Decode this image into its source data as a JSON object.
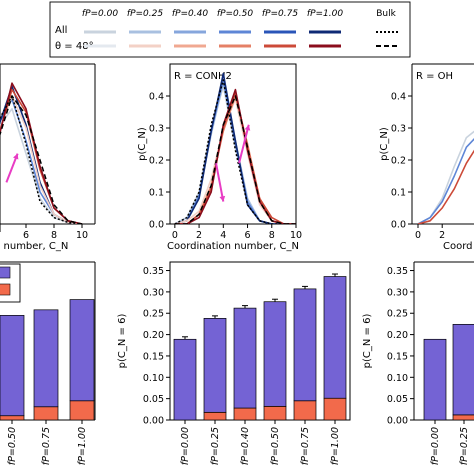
{
  "legend": {
    "row_labels": [
      "All",
      "θ = 48°"
    ],
    "entries": [
      {
        "label": "f_P = 0.00",
        "all_color": "#c9d3de",
        "theta_color": "#e4e9ef"
      },
      {
        "label": "f_P = 0.25",
        "all_color": "#a9c0e0",
        "theta_color": "#f3d1c6"
      },
      {
        "label": "f_P = 0.40",
        "all_color": "#86a6dc",
        "theta_color": "#f0a891"
      },
      {
        "label": "f_P = 0.50",
        "all_color": "#5e86d6",
        "theta_color": "#e58066"
      },
      {
        "label": "f_P = 0.75",
        "all_color": "#2a55b8",
        "theta_color": "#cc4a38"
      },
      {
        "label": "f_P = 1.00",
        "all_color": "#0f2a75",
        "theta_color": "#8b0d1c"
      }
    ],
    "bulk_label": "Bulk"
  },
  "colors": {
    "purple": "#7463d4",
    "orange": "#f26a4b",
    "arrow": "#e83cc4"
  },
  "chart_data": [
    {
      "type": "line",
      "panel": "top-left",
      "title": "",
      "xlabel": "Coordination number, C_N",
      "xlabel_visible": "n number, C_N",
      "ylabel": "",
      "xlim": [
        0,
        10
      ],
      "ylim": [
        0,
        0.5
      ],
      "xticks": [
        6,
        8,
        10
      ],
      "series": [
        {
          "group": "all",
          "fp": "0.00",
          "x": [
            0,
            1,
            2,
            3,
            4,
            5,
            6,
            7,
            8,
            9,
            10
          ],
          "y": [
            0,
            0.02,
            0.08,
            0.19,
            0.3,
            0.36,
            0.22,
            0.08,
            0.02,
            0.005,
            0
          ]
        },
        {
          "group": "all",
          "fp": "0.50",
          "x": [
            0,
            1,
            2,
            3,
            4,
            5,
            6,
            7,
            8,
            9,
            10
          ],
          "y": [
            0,
            0.02,
            0.07,
            0.18,
            0.31,
            0.39,
            0.26,
            0.1,
            0.03,
            0.005,
            0
          ]
        },
        {
          "group": "all",
          "fp": "1.00",
          "x": [
            0,
            1,
            2,
            3,
            4,
            5,
            6,
            7,
            8,
            9,
            10
          ],
          "y": [
            0,
            0.01,
            0.06,
            0.16,
            0.3,
            0.43,
            0.31,
            0.13,
            0.03,
            0.005,
            0
          ]
        },
        {
          "group": "theta",
          "fp": "0.25",
          "x": [
            0,
            1,
            2,
            3,
            4,
            5,
            6,
            7,
            8,
            9,
            10
          ],
          "y": [
            0,
            0.01,
            0.05,
            0.14,
            0.28,
            0.4,
            0.3,
            0.12,
            0.03,
            0.005,
            0
          ]
        },
        {
          "group": "theta",
          "fp": "0.75",
          "x": [
            0,
            1,
            2,
            3,
            4,
            5,
            6,
            7,
            8,
            9,
            10
          ],
          "y": [
            0,
            0.01,
            0.04,
            0.12,
            0.27,
            0.42,
            0.35,
            0.17,
            0.05,
            0.01,
            0
          ]
        },
        {
          "group": "theta",
          "fp": "1.00",
          "x": [
            0,
            1,
            2,
            3,
            4,
            5,
            6,
            7,
            8,
            9,
            10
          ],
          "y": [
            0,
            0.01,
            0.04,
            0.11,
            0.26,
            0.44,
            0.36,
            0.18,
            0.05,
            0.01,
            0
          ]
        },
        {
          "group": "bulk-all",
          "fp": "bulk",
          "x": [
            0,
            1,
            2,
            3,
            4,
            5,
            6,
            7,
            8,
            9,
            10
          ],
          "y": [
            0,
            0.01,
            0.05,
            0.17,
            0.32,
            0.4,
            0.25,
            0.07,
            0.02,
            0.005,
            0
          ]
        },
        {
          "group": "bulk-theta",
          "fp": "bulk",
          "x": [
            0,
            1,
            2,
            3,
            4,
            5,
            6,
            7,
            8,
            9,
            10
          ],
          "y": [
            0,
            0.01,
            0.04,
            0.12,
            0.26,
            0.4,
            0.34,
            0.2,
            0.06,
            0.01,
            0
          ]
        }
      ],
      "arrows": [
        {
          "from": [
            4.6,
            0.13
          ],
          "to": [
            5.4,
            0.22
          ]
        }
      ]
    },
    {
      "type": "line",
      "panel": "top-middle",
      "title": "R = CONH2",
      "xlabel": "Coordination number, C_N",
      "ylabel": "p(C_N)",
      "xlim": [
        -0.4,
        10
      ],
      "ylim": [
        0,
        0.5
      ],
      "xticks": [
        0,
        2,
        4,
        6,
        8,
        10
      ],
      "yticks": [
        0.0,
        0.1,
        0.2,
        0.3,
        0.4
      ],
      "series": [
        {
          "group": "all",
          "fp": "0.00",
          "x": [
            0,
            1,
            2,
            3,
            4,
            5,
            6,
            7,
            8,
            9,
            10
          ],
          "y": [
            0,
            0.02,
            0.1,
            0.3,
            0.43,
            0.24,
            0.07,
            0.01,
            0,
            0,
            0
          ]
        },
        {
          "group": "all",
          "fp": "0.25",
          "x": [
            0,
            1,
            2,
            3,
            4,
            5,
            6,
            7,
            8,
            9,
            10
          ],
          "y": [
            0,
            0.02,
            0.09,
            0.28,
            0.44,
            0.26,
            0.08,
            0.01,
            0,
            0,
            0
          ]
        },
        {
          "group": "all",
          "fp": "0.50",
          "x": [
            0,
            1,
            2,
            3,
            4,
            5,
            6,
            7,
            8,
            9,
            10
          ],
          "y": [
            0,
            0.01,
            0.09,
            0.29,
            0.45,
            0.25,
            0.07,
            0.01,
            0,
            0,
            0
          ]
        },
        {
          "group": "all",
          "fp": "1.00",
          "x": [
            0,
            1,
            2,
            3,
            4,
            5,
            6,
            7,
            8,
            9,
            10
          ],
          "y": [
            0,
            0.01,
            0.08,
            0.29,
            0.47,
            0.26,
            0.06,
            0.01,
            0,
            0,
            0
          ]
        },
        {
          "group": "theta",
          "fp": "0.25",
          "x": [
            0,
            1,
            2,
            3,
            4,
            5,
            6,
            7,
            8,
            9,
            10
          ],
          "y": [
            0,
            0.01,
            0.04,
            0.14,
            0.3,
            0.39,
            0.22,
            0.06,
            0.01,
            0,
            0
          ]
        },
        {
          "group": "theta",
          "fp": "0.50",
          "x": [
            0,
            1,
            2,
            3,
            4,
            5,
            6,
            7,
            8,
            9,
            10
          ],
          "y": [
            0,
            0,
            0.03,
            0.12,
            0.29,
            0.4,
            0.25,
            0.08,
            0.01,
            0,
            0
          ]
        },
        {
          "group": "theta",
          "fp": "0.75",
          "x": [
            0,
            1,
            2,
            3,
            4,
            5,
            6,
            7,
            8,
            9,
            10
          ],
          "y": [
            0,
            0,
            0.03,
            0.11,
            0.3,
            0.41,
            0.24,
            0.08,
            0.02,
            0,
            0
          ]
        },
        {
          "group": "theta",
          "fp": "1.00",
          "x": [
            0,
            1,
            2,
            3,
            4,
            5,
            6,
            7,
            8,
            9,
            10
          ],
          "y": [
            0,
            0,
            0.02,
            0.1,
            0.31,
            0.42,
            0.23,
            0.07,
            0.01,
            0,
            0
          ]
        },
        {
          "group": "bulk-all",
          "fp": "bulk",
          "x": [
            0,
            1,
            2,
            3,
            4,
            5,
            6,
            7,
            8,
            9,
            10
          ],
          "y": [
            0,
            0.02,
            0.1,
            0.31,
            0.45,
            0.23,
            0.06,
            0.01,
            0,
            0,
            0
          ]
        },
        {
          "group": "bulk-theta",
          "fp": "bulk",
          "x": [
            0,
            1,
            2,
            3,
            4,
            5,
            6,
            7,
            8,
            9,
            10
          ],
          "y": [
            0,
            0,
            0.03,
            0.12,
            0.31,
            0.4,
            0.24,
            0.07,
            0.01,
            0,
            0
          ]
        }
      ],
      "arrows": [
        {
          "from": [
            3.4,
            0.19
          ],
          "to": [
            4.0,
            0.07
          ]
        },
        {
          "from": [
            5.3,
            0.19
          ],
          "to": [
            6.1,
            0.31
          ]
        }
      ]
    },
    {
      "type": "line",
      "panel": "top-right",
      "title": "R = OH",
      "xlabel": "Coordination number, C_N",
      "xlabel_visible": "Coord",
      "ylabel": "p(C_N)",
      "xlim": [
        -0.4,
        10
      ],
      "ylim": [
        0,
        0.5
      ],
      "xticks": [
        0,
        2
      ],
      "yticks": [
        0.0,
        0.1,
        0.2,
        0.3,
        0.4
      ],
      "series": [
        {
          "group": "all",
          "fp": "0.00",
          "x": [
            0,
            1,
            2,
            3,
            4,
            5
          ],
          "y": [
            0,
            0.02,
            0.08,
            0.18,
            0.27,
            0.3
          ]
        },
        {
          "group": "all",
          "fp": "0.50",
          "x": [
            0,
            1,
            2,
            3,
            4,
            5
          ],
          "y": [
            0,
            0.02,
            0.07,
            0.15,
            0.24,
            0.28
          ]
        },
        {
          "group": "theta",
          "fp": "0.75",
          "x": [
            0,
            1,
            2,
            3,
            4,
            5
          ],
          "y": [
            0,
            0.01,
            0.05,
            0.11,
            0.19,
            0.25
          ]
        }
      ]
    },
    {
      "type": "bar",
      "panel": "bottom-left",
      "ylabel": "",
      "ylim": [
        0,
        0.37
      ],
      "categories": [
        "0.50",
        "0.75",
        "1.00"
      ],
      "category_tick_labels": [
        "f_P = 0.50",
        "f_P = 0.75",
        "f_P = 1.00"
      ],
      "stack": [
        {
          "name": "purple",
          "values": [
            0.235,
            0.227,
            0.237
          ]
        },
        {
          "name": "orange",
          "values": [
            0.01,
            0.031,
            0.045
          ]
        }
      ],
      "totals": [
        0.245,
        0.258,
        0.282
      ],
      "legend_swatches": 2
    },
    {
      "type": "bar",
      "panel": "bottom-middle",
      "ylabel": "p(C_N = 6)",
      "ylim": [
        0,
        0.37
      ],
      "yticks": [
        0.0,
        0.05,
        0.1,
        0.15,
        0.2,
        0.25,
        0.3,
        0.35
      ],
      "yticklabels": [
        "0.00",
        "0.05",
        "0.10",
        "0.15",
        "0.20",
        "0.25",
        "0.30",
        "0.35"
      ],
      "categories": [
        "0.00",
        "0.25",
        "0.40",
        "0.50",
        "0.75",
        "1.00"
      ],
      "category_tick_labels": [
        "f_P = 0.00",
        "f_P = 0.25",
        "f_P = 0.40",
        "f_P = 0.50",
        "f_P = 0.75",
        "f_P = 1.00"
      ],
      "stack": [
        {
          "name": "purple",
          "values": [
            0.189,
            0.22,
            0.234,
            0.245,
            0.262,
            0.285
          ]
        },
        {
          "name": "orange",
          "values": [
            0.0,
            0.018,
            0.028,
            0.032,
            0.045,
            0.051
          ]
        }
      ],
      "totals": [
        0.189,
        0.238,
        0.262,
        0.277,
        0.307,
        0.336
      ],
      "error_bars": true
    },
    {
      "type": "bar",
      "panel": "bottom-right",
      "ylabel": "p(C_N = 6)",
      "ylim": [
        0,
        0.37
      ],
      "yticks": [
        0.0,
        0.05,
        0.1,
        0.15,
        0.2,
        0.25,
        0.3,
        0.35
      ],
      "yticklabels": [
        "0.00",
        "0.05",
        "0.10",
        "0.15",
        "0.20",
        "0.25",
        "0.30",
        "0.35"
      ],
      "categories": [
        "0.00",
        "0.25"
      ],
      "category_tick_labels": [
        "f_P = 0.00",
        "f_P = 0.25"
      ],
      "stack": [
        {
          "name": "purple",
          "values": [
            0.189,
            0.212
          ]
        },
        {
          "name": "orange",
          "values": [
            0.0,
            0.012
          ]
        }
      ],
      "totals": [
        0.189,
        0.224
      ]
    }
  ]
}
